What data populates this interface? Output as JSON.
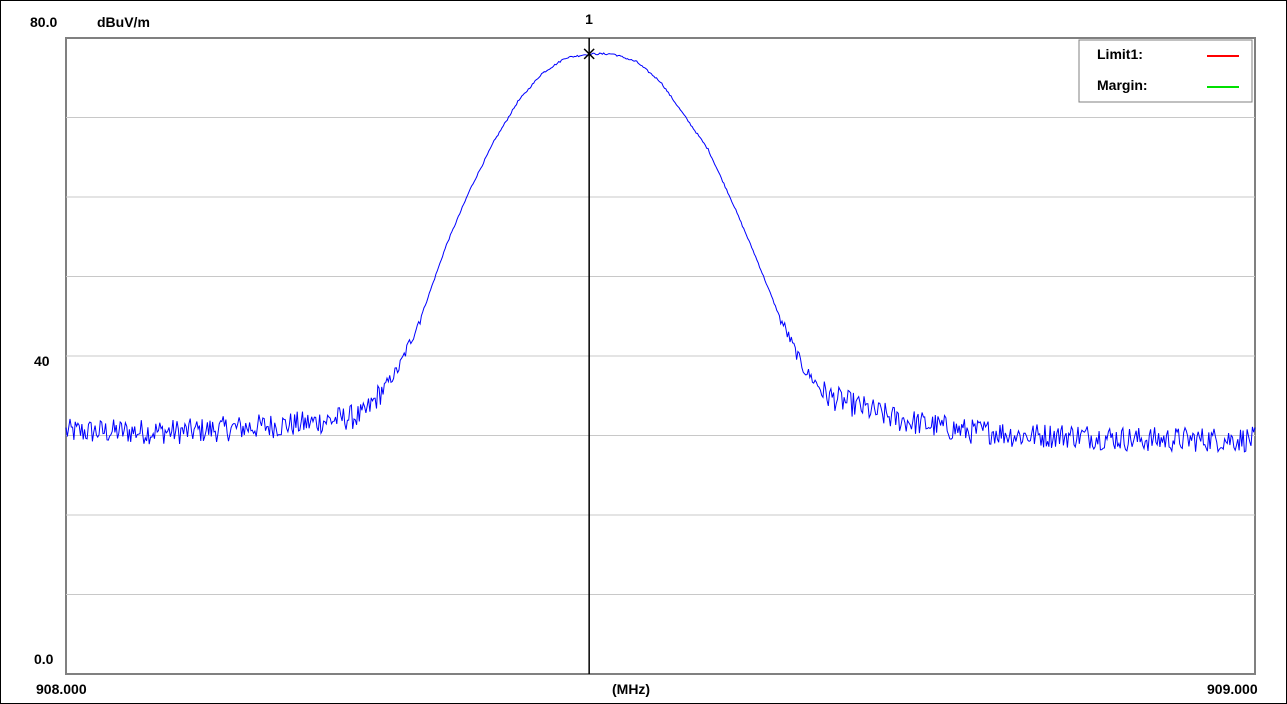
{
  "chart_data": {
    "type": "line",
    "xlabel": "(MHz)",
    "ylabel": "dBuV/m",
    "xlim": [
      908.0,
      909.0
    ],
    "ylim": [
      0.0,
      80.0
    ],
    "x_ticks": [
      "908.000",
      "909.000"
    ],
    "y_ticks": [
      "0.0",
      "40",
      "80.0"
    ],
    "y_gridlines": [
      10,
      20,
      30,
      40,
      50,
      60,
      70,
      80
    ],
    "grid": true,
    "legend_position": "top-right",
    "legend": [
      {
        "label": "Limit1:",
        "color": "#ff0000"
      },
      {
        "label": "Margin:",
        "color": "#00e000"
      }
    ],
    "series": [
      {
        "color": "#0000ff",
        "x": [
          908.0,
          908.05,
          908.1,
          908.15,
          908.2,
          908.25,
          908.26,
          908.28,
          908.3,
          908.32,
          908.34,
          908.36,
          908.38,
          908.4,
          908.42,
          908.44,
          908.46,
          908.48,
          908.5,
          908.54,
          908.56,
          908.58,
          908.6,
          908.62,
          908.64,
          908.66,
          908.68,
          908.7,
          908.72,
          908.74,
          908.76,
          908.78,
          908.8,
          908.85,
          908.9,
          908.95,
          909.0
        ],
        "y": [
          30.5,
          30.5,
          30.5,
          31.0,
          31.5,
          32.5,
          34.5,
          38.5,
          45.5,
          54.0,
          61.0,
          67.0,
          72.0,
          75.5,
          77.5,
          78.0,
          78.0,
          77.0,
          74.5,
          66.0,
          59.5,
          52.5,
          45.0,
          38.5,
          35.0,
          34.0,
          33.0,
          32.0,
          31.5,
          31.0,
          30.5,
          30.5,
          30.0,
          30.0,
          29.5,
          29.5,
          29.5
        ]
      }
    ],
    "marker": {
      "label": "1",
      "x": 908.44,
      "y": 78.0
    }
  }
}
